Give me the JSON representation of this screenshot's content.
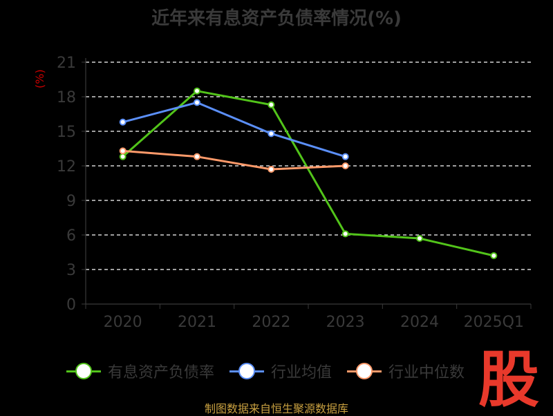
{
  "chart_data": {
    "type": "line",
    "title": "近年来有息资产负债率情况(%)",
    "ylabel": "(%)",
    "categories": [
      "2020",
      "2021",
      "2022",
      "2023",
      "2024",
      "2025Q1"
    ],
    "ylim": [
      0,
      21
    ],
    "yticks": [
      0,
      3,
      6,
      9,
      12,
      15,
      18,
      21
    ],
    "grid": true,
    "legend_position": "bottom",
    "series": [
      {
        "name": "有息资产负债率",
        "color": "#52c41a",
        "values": [
          12.8,
          18.5,
          17.3,
          6.1,
          5.7,
          4.2
        ]
      },
      {
        "name": "行业均值",
        "color": "#5b8ff9",
        "values": [
          15.8,
          17.5,
          14.8,
          12.8,
          null,
          null
        ]
      },
      {
        "name": "行业中位数",
        "color": "#ff9a6a",
        "values": [
          13.3,
          12.8,
          11.7,
          12.0,
          null,
          null
        ]
      }
    ]
  },
  "source_text": "制图数据来自恒生聚源数据库",
  "watermark_text": "股"
}
